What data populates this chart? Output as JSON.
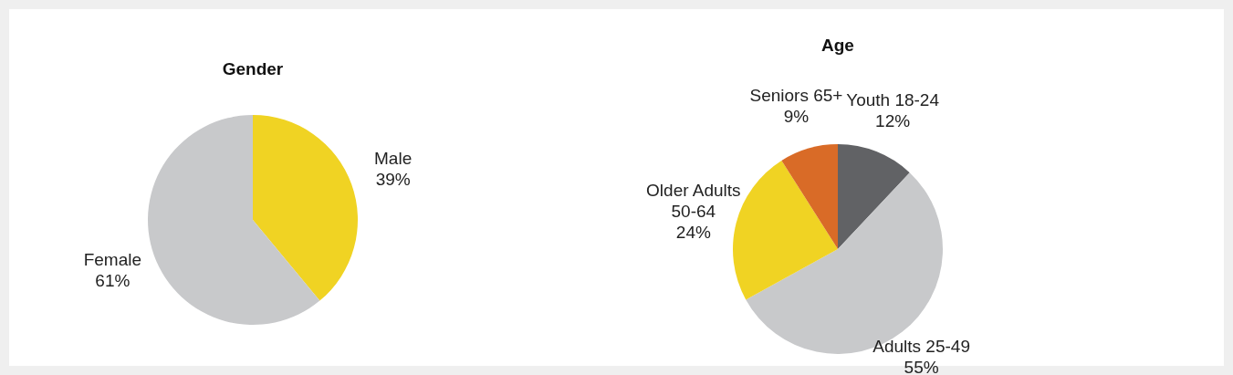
{
  "chart_data": [
    {
      "type": "pie",
      "title": "Gender",
      "categories": [
        "Male",
        "Female"
      ],
      "values": [
        39,
        61
      ],
      "colors": [
        "#f0d323",
        "#c8c9cb"
      ],
      "value_labels": [
        "39%",
        "61%"
      ]
    },
    {
      "type": "pie",
      "title": "Age",
      "categories": [
        "Youth 18-24",
        "Adults 25-49",
        "Older Adults 50-64",
        "Seniors 65+"
      ],
      "values": [
        12,
        55,
        24,
        9
      ],
      "colors": [
        "#616265",
        "#c8c9cb",
        "#f0d323",
        "#d96b27"
      ],
      "value_labels": [
        "12%",
        "55%",
        "24%",
        "9%"
      ]
    }
  ]
}
